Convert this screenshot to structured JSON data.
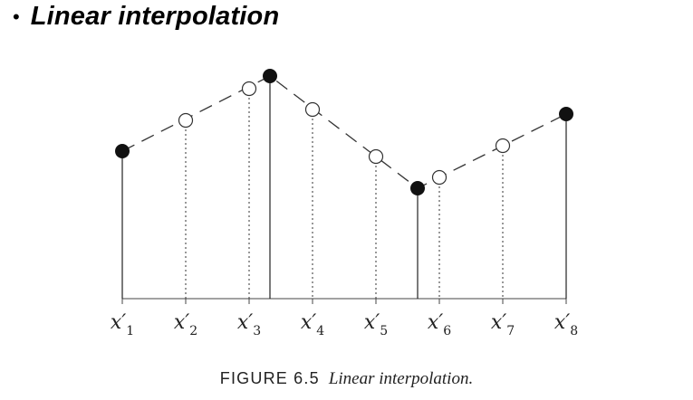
{
  "header": {
    "bullet": "•",
    "title": "Linear interpolation"
  },
  "caption": {
    "figure_label": "FIGURE 6.5",
    "text": "Linear interpolation."
  },
  "axis": {
    "ticks": [
      {
        "base": "x′",
        "sub": "1"
      },
      {
        "base": "x′",
        "sub": "2"
      },
      {
        "base": "x′",
        "sub": "3"
      },
      {
        "base": "x′",
        "sub": "4"
      },
      {
        "base": "x′",
        "sub": "5"
      },
      {
        "base": "x′",
        "sub": "6"
      },
      {
        "base": "x′",
        "sub": "7"
      },
      {
        "base": "x′",
        "sub": "8"
      }
    ]
  },
  "legend_semantics": {
    "known_samples": "filled-circle",
    "interpolated_samples": "open-circle"
  }
}
